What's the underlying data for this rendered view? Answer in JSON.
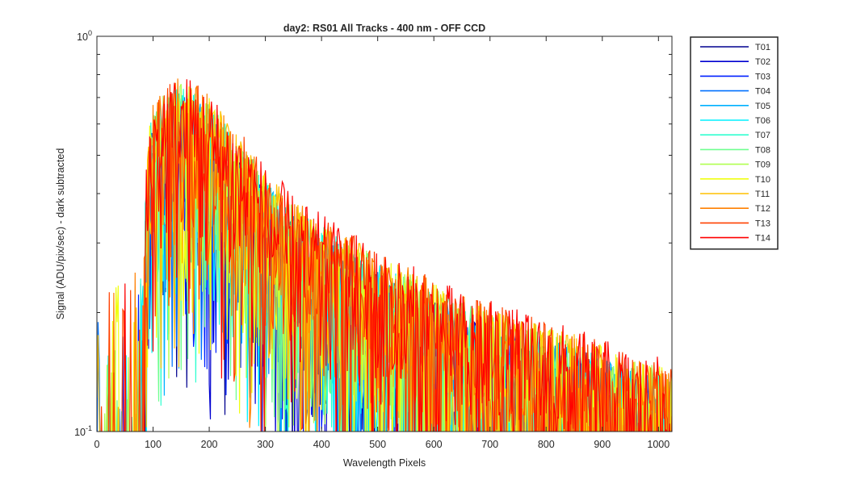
{
  "chart_data": {
    "type": "line",
    "title": "day2: RS01  All Tracks - 400 nm - OFF CCD",
    "xlabel": "Wavelength Pixels",
    "ylabel": "Signal (ADU/pix/sec) - dark subtracted",
    "xlim": [
      0,
      1024
    ],
    "ylim": [
      0.1,
      1
    ],
    "yscale": "log",
    "xticks": [
      0,
      100,
      200,
      300,
      400,
      500,
      600,
      700,
      800,
      900,
      1000
    ],
    "xtick_labels": [
      "0",
      "100",
      "200",
      "300",
      "400",
      "500",
      "600",
      "700",
      "800",
      "900",
      "1000"
    ],
    "ytick_labels": [
      {
        "value": 1,
        "base": "10",
        "exp": "0"
      },
      {
        "value": 0.1,
        "base": "10",
        "exp": "-1"
      }
    ],
    "grid": false,
    "legend_position": "outside-right",
    "envelope": {
      "x": [
        0,
        80,
        85,
        90,
        95,
        100,
        120,
        150,
        200,
        250,
        300,
        350,
        400,
        450,
        500,
        550,
        600,
        650,
        700,
        750,
        800,
        850,
        900,
        950,
        1024
      ],
      "peak": [
        0.21,
        0.25,
        0.35,
        0.5,
        0.6,
        0.65,
        0.7,
        0.76,
        0.68,
        0.55,
        0.44,
        0.37,
        0.33,
        0.3,
        0.27,
        0.25,
        0.23,
        0.21,
        0.2,
        0.19,
        0.18,
        0.17,
        0.16,
        0.15,
        0.14
      ]
    },
    "series": [
      {
        "name": "T01",
        "color": "#00008f"
      },
      {
        "name": "T02",
        "color": "#0000d0"
      },
      {
        "name": "T03",
        "color": "#0020ff"
      },
      {
        "name": "T04",
        "color": "#0070ff"
      },
      {
        "name": "T05",
        "color": "#00b0ff"
      },
      {
        "name": "T06",
        "color": "#00f0ff"
      },
      {
        "name": "T07",
        "color": "#30ffd0"
      },
      {
        "name": "T08",
        "color": "#70ff90"
      },
      {
        "name": "T09",
        "color": "#b0ff50"
      },
      {
        "name": "T10",
        "color": "#f0ff10"
      },
      {
        "name": "T11",
        "color": "#ffc000"
      },
      {
        "name": "T12",
        "color": "#ff8000"
      },
      {
        "name": "T13",
        "color": "#ff4000"
      },
      {
        "name": "T14",
        "color": "#ff0000"
      }
    ]
  }
}
